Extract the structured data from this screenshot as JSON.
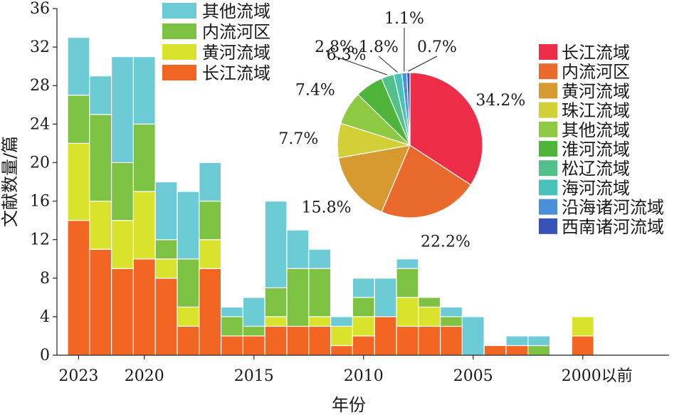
{
  "chart_data": [
    {
      "type": "bar",
      "stacked": true,
      "xlabel": "年份",
      "ylabel": "文献数量/篇",
      "ylim": [
        0,
        36
      ],
      "yticks": [
        0,
        4,
        8,
        12,
        16,
        20,
        24,
        28,
        32,
        36
      ],
      "xtick_labels": [
        "2023",
        "2020",
        "2015",
        "2010",
        "2005",
        "2000以前"
      ],
      "xtick_categories": [
        "2023",
        "2020",
        "2015",
        "2010",
        "2005",
        "2000以前"
      ],
      "categories": [
        "2023",
        "2022",
        "2021",
        "2020",
        "2019",
        "2018",
        "2017",
        "2016",
        "2015",
        "2014",
        "2013",
        "2012",
        "2011",
        "2010",
        "2009",
        "2008",
        "2007",
        "2006",
        "2005",
        "2004",
        "2003",
        "2002",
        "2001",
        "2000以前"
      ],
      "legend_position": "top",
      "series": [
        {
          "name": "长江流域",
          "color": "#f26522",
          "values": [
            14,
            11,
            9,
            10,
            8,
            3,
            9,
            2,
            2,
            3,
            3,
            3,
            1,
            2,
            4,
            3,
            3,
            3,
            0,
            1,
            1,
            0,
            0,
            2
          ]
        },
        {
          "name": "黄河流域",
          "color": "#d9e32b",
          "values": [
            8,
            5,
            5,
            7,
            2,
            2,
            3,
            0,
            0,
            1,
            0,
            1,
            2,
            2,
            0,
            3,
            2,
            0,
            0,
            0,
            0,
            0,
            0,
            2
          ]
        },
        {
          "name": "内流河区",
          "color": "#7dc242",
          "values": [
            5,
            9,
            6,
            7,
            2,
            5,
            4,
            2,
            1,
            3,
            6,
            5,
            0,
            2,
            0,
            3,
            1,
            1,
            0,
            0,
            0,
            1,
            0,
            0
          ]
        },
        {
          "name": "其他流域",
          "color": "#6ccbd4",
          "values": [
            6,
            4,
            11,
            7,
            6,
            7,
            4,
            1,
            3,
            9,
            4,
            2,
            1,
            2,
            4,
            1,
            0,
            1,
            4,
            0,
            1,
            1,
            0,
            0
          ]
        }
      ]
    },
    {
      "type": "pie",
      "categories": [
        "长江流域",
        "内流河区",
        "黄河流域",
        "珠江流域",
        "其他流域",
        "淮河流域",
        "松辽流域",
        "海河流域",
        "沿海诸河流域",
        "西南诸河流域"
      ],
      "values": [
        34.2,
        22.2,
        15.8,
        7.7,
        7.4,
        6.3,
        2.8,
        1.8,
        1.1,
        0.7
      ],
      "labels": [
        "34.2%",
        "22.2%",
        "15.8%",
        "7.7%",
        "7.4%",
        "6.3%",
        "2.8%",
        "1.8%",
        "1.1%",
        "0.7%"
      ],
      "colors": [
        "#ee2e48",
        "#ea6a2e",
        "#d69a30",
        "#d3cf36",
        "#8dc943",
        "#4eb53a",
        "#52c08a",
        "#48c2b8",
        "#4a90d9",
        "#3752b8"
      ],
      "legend_position": "right"
    }
  ]
}
